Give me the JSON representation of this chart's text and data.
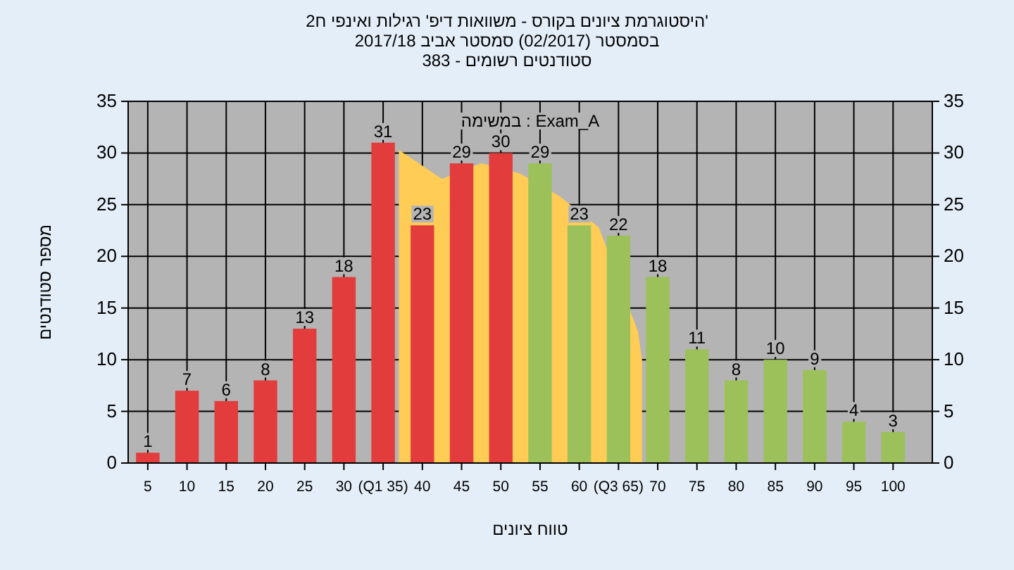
{
  "chart_data": {
    "type": "bar",
    "title": "'היסטוגרמת ציונים בקורס - משוואות דיפ' רגילות ואינפי ח2",
    "subtitle": "בסמסטר (02/2017) סמסטר אביב 2017/18",
    "xlabel": "טווח ציונים",
    "ylabel": "מספר סטודנטים",
    "annotations": [
      "סטודנטים רשומים - 383",
      "במשימה : Exam_A"
    ],
    "x": [
      5,
      10,
      15,
      20,
      25,
      30,
      35,
      40,
      45,
      50,
      55,
      60,
      65,
      70,
      75,
      80,
      85,
      90,
      95,
      100
    ],
    "series": [
      {
        "type": "area",
        "color": "#ffcc55",
        "x": [
          37,
          42.5,
          47.5,
          52.5,
          57.5,
          62.5,
          67.5,
          68
        ],
        "values": [
          30.3,
          27.5,
          29,
          28,
          25.8,
          22.8,
          12.7,
          10
        ]
      },
      {
        "values": [
          1,
          7,
          6,
          8,
          13,
          18,
          31,
          23,
          29,
          30,
          29,
          23,
          22,
          18,
          11,
          8,
          10,
          9,
          4,
          3
        ],
        "value_labels": [
          "1",
          "7",
          "6",
          "8",
          "13",
          "18",
          "31",
          "23",
          "29",
          "30",
          "29",
          "23",
          "22",
          "18",
          "11",
          "8",
          "10",
          "9",
          "4",
          "3"
        ],
        "colors": [
          "#e23c3c",
          "#e23c3c",
          "#e23c3c",
          "#e23c3c",
          "#e23c3c",
          "#e23c3c",
          "#e23c3c",
          "#e23c3c",
          "#e23c3c",
          "#e23c3c",
          "#9cc15a",
          "#9cc15a",
          "#9cc15a",
          "#9cc15a",
          "#9cc15a",
          "#9cc15a",
          "#9cc15a",
          "#9cc15a",
          "#9cc15a",
          "#9cc15a"
        ]
      }
    ],
    "xlim": [
      2.5,
      105
    ],
    "xticks": [
      5,
      10,
      15,
      20,
      25,
      30,
      {
        "value": 35,
        "label": "(Q1 35)"
      },
      40,
      45,
      50,
      55,
      60,
      {
        "value": 65,
        "label": "(Q3 65)"
      },
      70,
      75,
      80,
      85,
      90,
      95,
      100
    ],
    "ylim": [
      0,
      35
    ],
    "yticks": [
      0,
      5,
      10,
      15,
      20,
      25,
      30,
      35
    ],
    "y2lim": [
      0,
      35
    ],
    "y2ticks": [
      0,
      5,
      10,
      15,
      20,
      25,
      30,
      35
    ],
    "grid": true
  }
}
